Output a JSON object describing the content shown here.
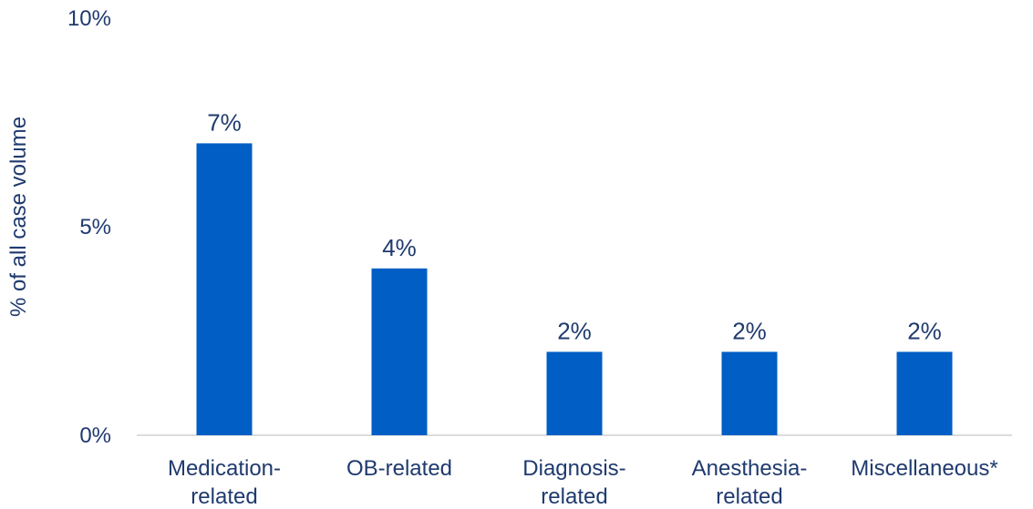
{
  "chart_data": {
    "type": "bar",
    "ylabel": "% of all case volume",
    "yticks": [
      "0%",
      "5%",
      "10%"
    ],
    "ytick_values": [
      0,
      5,
      10
    ],
    "ylim": [
      0,
      10
    ],
    "categories": [
      [
        "Medication-",
        "related"
      ],
      [
        "OB-related"
      ],
      [
        "Diagnosis-",
        "related"
      ],
      [
        "Anesthesia-",
        "related"
      ],
      [
        "Miscellaneous*"
      ]
    ],
    "values": [
      7,
      4,
      2,
      2,
      2
    ],
    "data_labels": [
      "7%",
      "4%",
      "2%",
      "2%",
      "2%"
    ],
    "grid": false,
    "bar_color": "#005EC5",
    "axis_color": "#d0d0d0"
  }
}
